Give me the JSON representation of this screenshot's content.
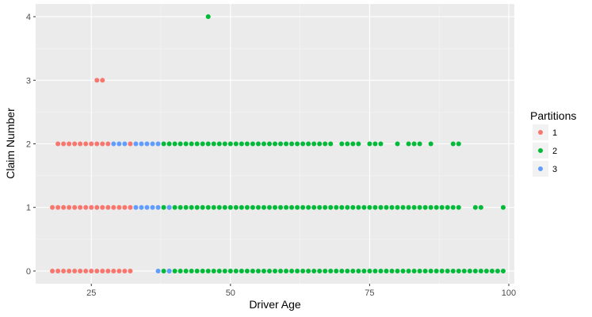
{
  "chart_data": {
    "type": "scatter",
    "title": "",
    "xlabel": "Driver Age",
    "ylabel": "Claim Number",
    "xlim": [
      15,
      101
    ],
    "ylim": [
      -0.2,
      4.2
    ],
    "x_ticks": [
      25,
      50,
      75,
      100
    ],
    "y_ticks": [
      0,
      1,
      2,
      3,
      4
    ],
    "grid": true,
    "legend_title": "Partitions",
    "legend_position": "right",
    "series": [
      {
        "name": "1",
        "color": "#F8766D",
        "points": [
          {
            "y": 0,
            "x_from": 18,
            "x_to": 32
          },
          {
            "y": 1,
            "x_from": 18,
            "x_to": 32
          },
          {
            "y": 2,
            "x_from": 19,
            "x_to": 28
          },
          {
            "y": 2,
            "x_from": 32,
            "x_to": 32
          },
          {
            "y": 3,
            "x": [
              26,
              27
            ]
          }
        ]
      },
      {
        "name": "2",
        "color": "#00BA38",
        "points": [
          {
            "y": 0,
            "x_from": 38,
            "x_to": 99
          },
          {
            "y": 1,
            "x_from": 38,
            "x_to": 91
          },
          {
            "y": 1,
            "x": [
              94,
              95,
              99
            ]
          },
          {
            "y": 2,
            "x_from": 38,
            "x_to": 68
          },
          {
            "y": 2,
            "x": [
              70,
              71,
              72,
              73,
              75,
              76,
              77,
              80,
              82,
              83,
              84,
              86,
              90,
              91
            ]
          },
          {
            "y": 4,
            "x": [
              46
            ]
          }
        ]
      },
      {
        "name": "3",
        "color": "#619CFF",
        "points": [
          {
            "y": 0,
            "x": [
              37,
              39
            ]
          },
          {
            "y": 1,
            "x_from": 33,
            "x_to": 37
          },
          {
            "y": 1,
            "x": [
              39
            ]
          },
          {
            "y": 2,
            "x_from": 29,
            "x_to": 31
          },
          {
            "y": 2,
            "x_from": 33,
            "x_to": 37
          }
        ]
      }
    ]
  }
}
